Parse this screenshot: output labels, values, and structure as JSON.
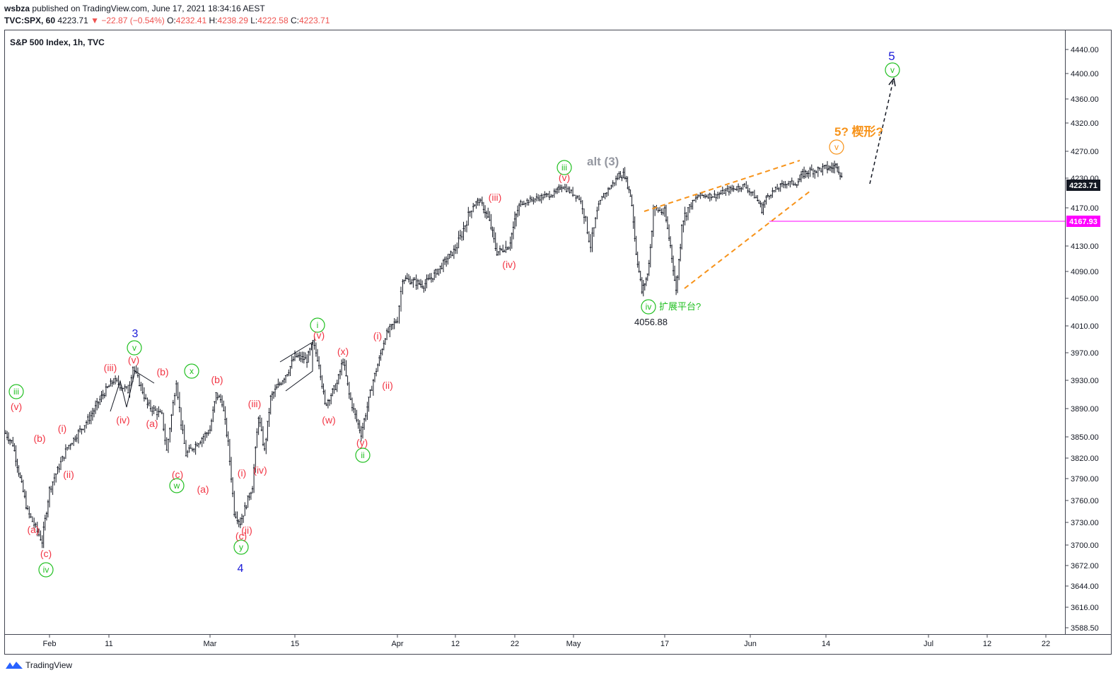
{
  "header": {
    "author": "wsbza",
    "published_text": "published on TradingView.com, June 17, 2021 18:34:16 AEST",
    "symbol": "TVC:SPX, 60",
    "last": "4223.71",
    "arrow": "▼",
    "change": "−22.87 (−0.54%)",
    "o_label": "O:",
    "o_val": "4232.41",
    "h_label": "H:",
    "h_val": "4238.29",
    "l_label": "L:",
    "l_val": "4222.58",
    "c_label": "C:",
    "c_val": "4223.71"
  },
  "footer": {
    "brand": "TradingView"
  },
  "colors": {
    "bars": "#131722",
    "wave_red": "#f23645",
    "wave_green": "#22c022",
    "wave_blue": "#1a1ad8",
    "orange": "#f7931a",
    "magenta": "#ff00ff",
    "axis_text": "#131722"
  },
  "chart_data": {
    "type": "candlestick",
    "title": "S&P 500 Index, 1h, TVC",
    "x_ticks": [
      "Feb",
      "11",
      "Mar",
      "15",
      "Apr",
      "12",
      "22",
      "May",
      "17",
      "Jun",
      "14",
      "Jul",
      "12",
      "22"
    ],
    "y_ticks": [
      "4440.00",
      "4400.00",
      "4360.00",
      "4320.00",
      "4270.00",
      "4230.00",
      "4170.00",
      "4130.00",
      "4090.00",
      "4050.00",
      "4010.00",
      "3970.00",
      "3930.00",
      "3890.00",
      "3850.00",
      "3820.00",
      "3790.00",
      "3760.00",
      "3730.00",
      "3700.00",
      "3672.00",
      "3644.00",
      "3616.00",
      "3588.50"
    ],
    "last_price": "4223.71",
    "horizontal_line": "4167.93",
    "low_label": "4056.88",
    "annotations": {
      "alt3": "alt (3)",
      "wedge": "5? 楔形?",
      "flat": "扩展平台?",
      "v_i": "i",
      "v_ii": "ii",
      "v_iii": "iii",
      "v_iv": "iv",
      "v_v": "v",
      "w": "w",
      "x": "x",
      "y": "y",
      "p_i": "(i)",
      "p_ii": "(ii)",
      "p_iii": "(iii)",
      "p_iv": "(iv)",
      "p_v": "(v)",
      "p_a": "(a)",
      "p_b": "(b)",
      "p_c": "(c)",
      "p_w": "(w)",
      "p_x": "(x)",
      "p_y": "(y)",
      "n3": "3",
      "n4": "4",
      "n5": "5"
    },
    "path": [
      [
        "01-26",
        3855
      ],
      [
        "01-27",
        3840
      ],
      [
        "01-28",
        3790
      ],
      [
        "01-29",
        3745
      ],
      [
        "01-31",
        3705
      ],
      [
        "02-01",
        3775
      ],
      [
        "02-04",
        3835
      ],
      [
        "02-08",
        3880
      ],
      [
        "02-10",
        3910
      ],
      [
        "02-12",
        3930
      ],
      [
        "02-15",
        3915
      ],
      [
        "02-16",
        3950
      ],
      [
        "02-18",
        3915
      ],
      [
        "02-19",
        3895
      ],
      [
        "02-22",
        3880
      ],
      [
        "02-23",
        3830
      ],
      [
        "02-24",
        3880
      ],
      [
        "02-25",
        3930
      ],
      [
        "02-26",
        3870
      ],
      [
        "02-27",
        3825
      ],
      [
        "03-01",
        3860
      ],
      [
        "03-02",
        3910
      ],
      [
        "03-03",
        3900
      ],
      [
        "03-04",
        3840
      ],
      [
        "03-05",
        3745
      ],
      [
        "03-06",
        3730
      ],
      [
        "03-08",
        3780
      ],
      [
        "03-09",
        3880
      ],
      [
        "03-10",
        3830
      ],
      [
        "03-11",
        3905
      ],
      [
        "03-14",
        3945
      ],
      [
        "03-15",
        3965
      ],
      [
        "03-17",
        3960
      ],
      [
        "03-18",
        3985
      ],
      [
        "03-19",
        3955
      ],
      [
        "03-20",
        3895
      ],
      [
        "03-22",
        3925
      ],
      [
        "03-23",
        3960
      ],
      [
        "03-24",
        3910
      ],
      [
        "03-25",
        3880
      ],
      [
        "03-26",
        3855
      ],
      [
        "03-28",
        3930
      ],
      [
        "03-29",
        3960
      ],
      [
        "03-30",
        3995
      ],
      [
        "04-01",
        4020
      ],
      [
        "04-02",
        4080
      ],
      [
        "04-06",
        4070
      ],
      [
        "04-08",
        4085
      ],
      [
        "04-12",
        4125
      ],
      [
        "04-15",
        4175
      ],
      [
        "04-16",
        4185
      ],
      [
        "04-18",
        4150
      ],
      [
        "04-19",
        4120
      ],
      [
        "04-21",
        4130
      ],
      [
        "04-23",
        4180
      ],
      [
        "04-26",
        4190
      ],
      [
        "04-29",
        4200
      ],
      [
        "04-30",
        4215
      ],
      [
        "05-02",
        4190
      ],
      [
        "05-04",
        4130
      ],
      [
        "05-06",
        4190
      ],
      [
        "05-09",
        4235
      ],
      [
        "05-10",
        4235
      ],
      [
        "05-11",
        4195
      ],
      [
        "05-12",
        4120
      ],
      [
        "05-13",
        4060
      ],
      [
        "05-14",
        4085
      ],
      [
        "05-15",
        4170
      ],
      [
        "05-17",
        4165
      ],
      [
        "05-18",
        4130
      ],
      [
        "05-19",
        4060
      ],
      [
        "05-20",
        4155
      ],
      [
        "05-23",
        4195
      ],
      [
        "05-26",
        4195
      ],
      [
        "05-28",
        4205
      ],
      [
        "05-31",
        4215
      ],
      [
        "06-02",
        4190
      ],
      [
        "06-03",
        4170
      ],
      [
        "06-04",
        4195
      ],
      [
        "06-07",
        4220
      ],
      [
        "06-09",
        4220
      ],
      [
        "06-10",
        4235
      ],
      [
        "06-11",
        4240
      ],
      [
        "06-14",
        4245
      ],
      [
        "06-15",
        4245
      ],
      [
        "06-16",
        4250
      ],
      [
        "06-17",
        4223.71
      ]
    ]
  }
}
